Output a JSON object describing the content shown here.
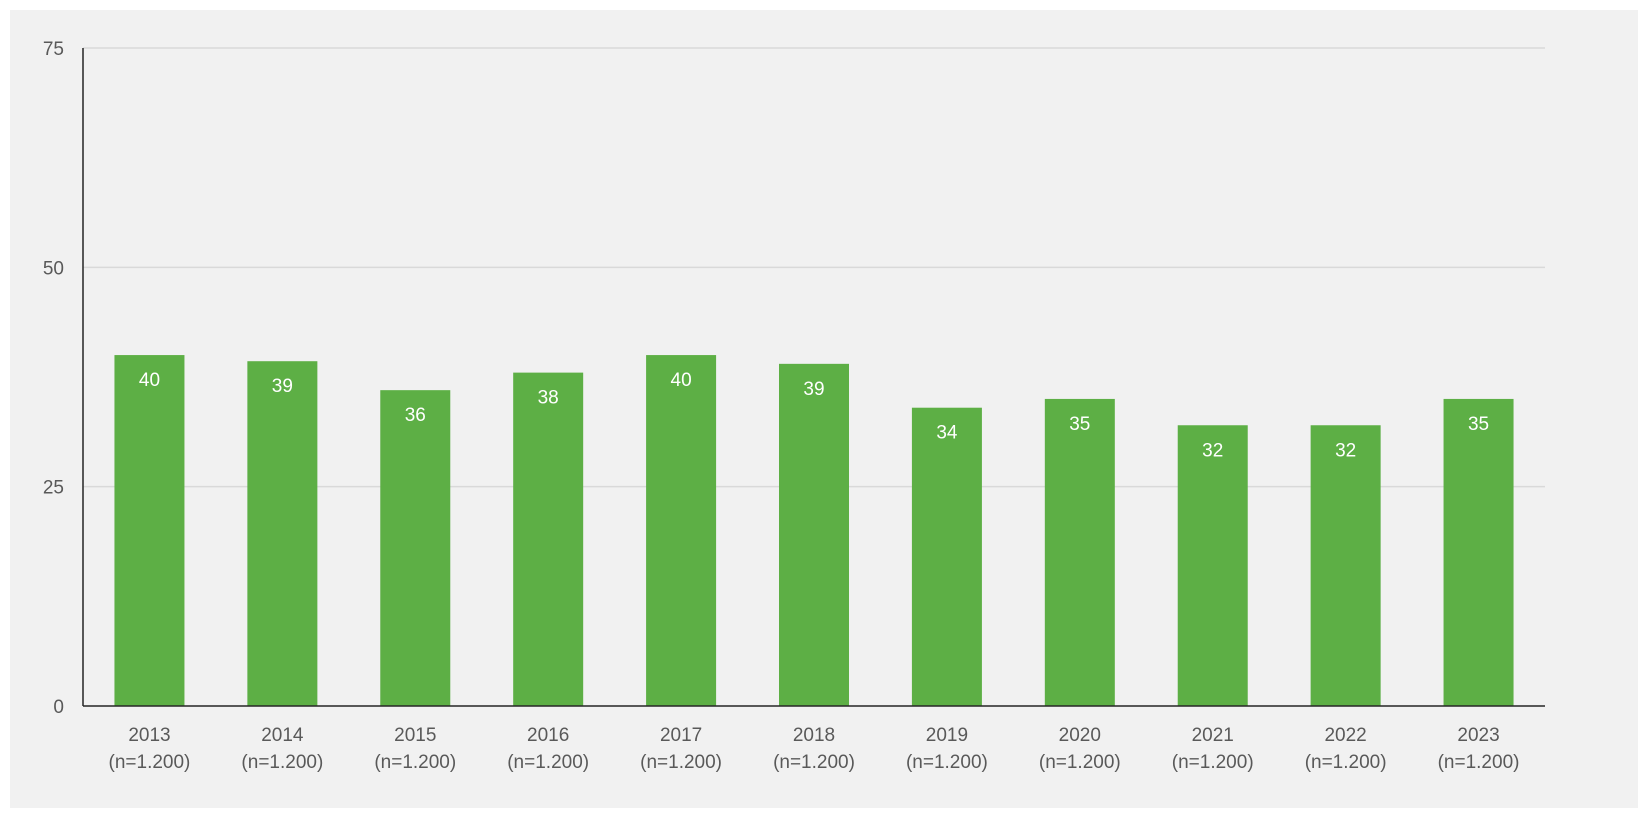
{
  "chart_data": {
    "type": "bar",
    "title": "",
    "xlabel": "",
    "ylabel": "",
    "ylim": [
      0,
      75
    ],
    "yticks": [
      0,
      25,
      50,
      75
    ],
    "yticks_text": [
      "0",
      "25",
      "50",
      "75"
    ],
    "grid": true,
    "legend": "none",
    "categories": [
      {
        "year": "2013",
        "n": "(n=1.200)"
      },
      {
        "year": "2014",
        "n": "(n=1.200)"
      },
      {
        "year": "2015",
        "n": "(n=1.200)"
      },
      {
        "year": "2016",
        "n": "(n=1.200)"
      },
      {
        "year": "2017",
        "n": "(n=1.200)"
      },
      {
        "year": "2018",
        "n": "(n=1.200)"
      },
      {
        "year": "2019",
        "n": "(n=1.200)"
      },
      {
        "year": "2020",
        "n": "(n=1.200)"
      },
      {
        "year": "2021",
        "n": "(n=1.200)"
      },
      {
        "year": "2022",
        "n": "(n=1.200)"
      },
      {
        "year": "2023",
        "n": "(n=1.200)"
      }
    ],
    "values": [
      40,
      39.3,
      36,
      38,
      40,
      39,
      34,
      35,
      32,
      32,
      35
    ],
    "labels": [
      "40",
      "39",
      "36",
      "38",
      "40",
      "39",
      "34",
      "35",
      "32",
      "32",
      "35"
    ],
    "colors": {
      "bar": "#5daf45",
      "grid": "#d9d9d9",
      "axis": "#262626",
      "background": "#f1f1f1",
      "text": "#595959",
      "data_label": "#ffffff"
    }
  }
}
